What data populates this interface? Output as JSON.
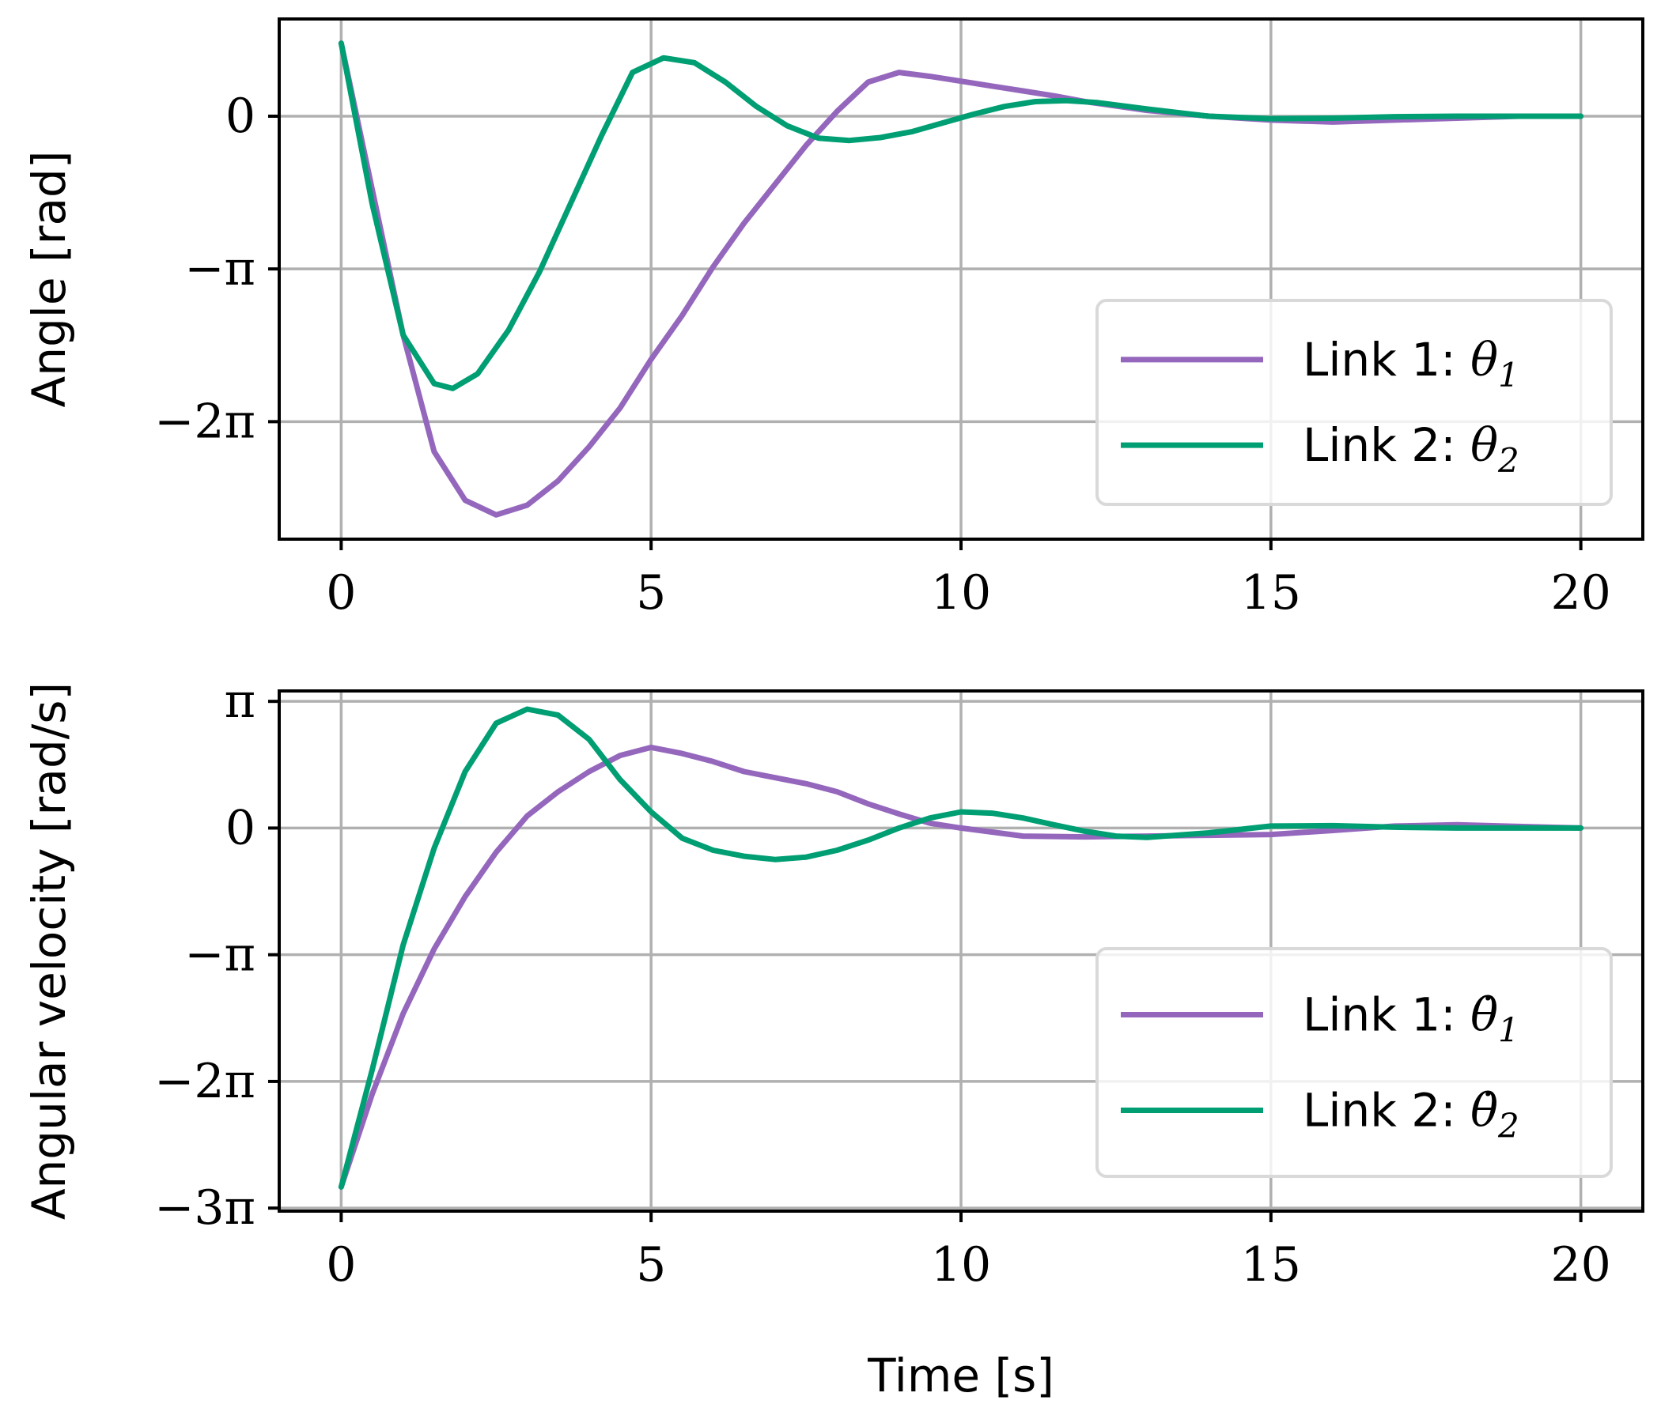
{
  "chart_data": [
    {
      "type": "line",
      "xlabel": "",
      "ylabel": "Angle [rad]",
      "xlim": [
        -1,
        21
      ],
      "ylim": [
        -8.7,
        2.0
      ],
      "x_ticks": [
        0,
        5,
        10,
        15,
        20
      ],
      "x_tick_labels": [
        "0",
        "5",
        "10",
        "15",
        "20"
      ],
      "y_ticks": [
        0,
        -3.14159,
        -6.28319
      ],
      "y_tick_labels": [
        "0",
        "−π",
        "−2π"
      ],
      "grid": true,
      "legend_position": "lower-right",
      "series": [
        {
          "name": "Link 1: θ₁",
          "legend_label": "Link 1: ",
          "legend_symbol": "θ",
          "legend_sub": "1",
          "color": "#9467bd",
          "x": [
            0,
            0.5,
            1,
            1.5,
            2,
            2.5,
            3,
            3.5,
            4,
            4.5,
            5,
            5.5,
            6,
            6.5,
            7,
            7.5,
            8,
            8.5,
            9,
            9.5,
            10,
            10.5,
            11,
            11.5,
            12,
            13,
            14,
            15,
            16,
            17,
            18,
            19,
            20
          ],
          "y": [
            1.5,
            -1.5,
            -4.5,
            -6.9,
            -7.9,
            -8.2,
            -8.0,
            -7.5,
            -6.8,
            -6.0,
            -5.0,
            -4.1,
            -3.1,
            -2.2,
            -1.4,
            -0.6,
            0.1,
            0.7,
            0.9,
            0.82,
            0.72,
            0.62,
            0.52,
            0.42,
            0.3,
            0.12,
            0.0,
            -0.08,
            -0.12,
            -0.08,
            -0.04,
            0.0,
            0.0
          ]
        },
        {
          "name": "Link 2: θ₂",
          "legend_label": "Link 2: ",
          "legend_symbol": "θ",
          "legend_sub": "2",
          "color": "#009e73",
          "x": [
            0,
            0.5,
            1,
            1.5,
            1.8,
            2.2,
            2.7,
            3.2,
            3.7,
            4.2,
            4.7,
            5.2,
            5.7,
            6.2,
            6.7,
            7.2,
            7.7,
            8.2,
            8.7,
            9.2,
            9.7,
            10.2,
            10.7,
            11.2,
            11.7,
            12.2,
            13,
            14,
            15,
            16,
            17,
            18,
            19,
            20
          ],
          "y": [
            1.5,
            -1.8,
            -4.5,
            -5.5,
            -5.6,
            -5.3,
            -4.4,
            -3.2,
            -1.8,
            -0.4,
            0.9,
            1.2,
            1.1,
            0.7,
            0.2,
            -0.2,
            -0.45,
            -0.5,
            -0.44,
            -0.32,
            -0.14,
            0.04,
            0.2,
            0.3,
            0.32,
            0.28,
            0.15,
            0.0,
            -0.05,
            -0.04,
            -0.01,
            0.0,
            0.0,
            0.0
          ]
        }
      ]
    },
    {
      "type": "line",
      "xlabel": "Time [s]",
      "ylabel": "Angular velocity [rad/s]",
      "xlim": [
        -1,
        21
      ],
      "ylim": [
        -9.5,
        3.4
      ],
      "x_ticks": [
        0,
        5,
        10,
        15,
        20
      ],
      "x_tick_labels": [
        "0",
        "5",
        "10",
        "15",
        "20"
      ],
      "y_ticks": [
        3.14159,
        0,
        -3.14159,
        -6.28319,
        -9.42478
      ],
      "y_tick_labels": [
        "π",
        "0",
        "−π",
        "−2π",
        "−3π"
      ],
      "grid": true,
      "legend_position": "lower-right",
      "series": [
        {
          "name": "Link 1: θ̇₁",
          "legend_label": "Link 1: ",
          "legend_symbol": "θ̇",
          "legend_sub": "1",
          "color": "#9467bd",
          "x": [
            0,
            0.5,
            1,
            1.5,
            2,
            2.5,
            3,
            3.5,
            4,
            4.5,
            5,
            5.5,
            6,
            6.5,
            7,
            7.5,
            8,
            8.5,
            9,
            9.5,
            10,
            10.5,
            11,
            12,
            13,
            14,
            15,
            16,
            17,
            18,
            19,
            20
          ],
          "y": [
            -8.9,
            -6.6,
            -4.6,
            -3.0,
            -1.7,
            -0.6,
            0.3,
            0.9,
            1.4,
            1.8,
            2.0,
            1.85,
            1.65,
            1.4,
            1.25,
            1.1,
            0.9,
            0.6,
            0.35,
            0.12,
            0.0,
            -0.1,
            -0.2,
            -0.22,
            -0.2,
            -0.18,
            -0.16,
            -0.06,
            0.05,
            0.08,
            0.04,
            0.0
          ]
        },
        {
          "name": "Link 2: θ̇₂",
          "legend_label": "Link 2: ",
          "legend_symbol": "θ̇",
          "legend_sub": "2",
          "color": "#009e73",
          "x": [
            0,
            0.5,
            1,
            1.5,
            2,
            2.5,
            3,
            3.5,
            4,
            4.5,
            5,
            5.5,
            6,
            6.5,
            7,
            7.5,
            8,
            8.5,
            9,
            9.5,
            10,
            10.5,
            11,
            11.5,
            12,
            12.5,
            13,
            14,
            15,
            16,
            17,
            18,
            19,
            20
          ],
          "y": [
            -8.9,
            -6.0,
            -2.9,
            -0.5,
            1.4,
            2.6,
            2.95,
            2.8,
            2.2,
            1.2,
            0.4,
            -0.25,
            -0.55,
            -0.7,
            -0.78,
            -0.72,
            -0.55,
            -0.3,
            0.0,
            0.25,
            0.4,
            0.37,
            0.25,
            0.08,
            -0.08,
            -0.2,
            -0.23,
            -0.12,
            0.05,
            0.06,
            0.02,
            0.0,
            0.0,
            0.0
          ]
        }
      ]
    }
  ]
}
